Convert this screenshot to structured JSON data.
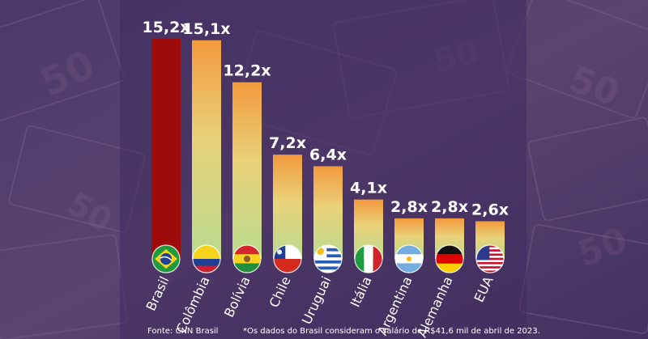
{
  "chart_data": {
    "type": "bar",
    "categories": [
      "Brasil",
      "Colômbia",
      "Bolívia",
      "Chile",
      "Uruguai",
      "Itália",
      "Argentina",
      "Alemanha",
      "EUA"
    ],
    "values": [
      15.2,
      15.1,
      12.2,
      7.2,
      6.4,
      4.1,
      2.8,
      2.8,
      2.6
    ],
    "value_labels": [
      "15,2x",
      "15,1x",
      "12,2x",
      "7,2x",
      "6,4x",
      "4,1x",
      "2,8x",
      "2,8x",
      "2,6x"
    ],
    "ylim": [
      0,
      15.2
    ],
    "grid": false,
    "legend": "none",
    "flags": [
      "brazil-flag",
      "colombia-flag",
      "bolivia-flag",
      "chile-flag",
      "uruguay-flag",
      "italy-flag",
      "argentina-flag",
      "germany-flag",
      "usa-flag"
    ],
    "colors": {
      "highlight_bar": "#9e0b0b",
      "gradient_top": "#f29a3c",
      "gradient_mid": "#e9d27a",
      "gradient_bottom": "#b9db8f",
      "background": "#4a3766"
    }
  },
  "footer": {
    "source": "Fonte: CNN Brasil",
    "note": "*Os dados do Brasil consideram o salário de R$41,6 mil de abril de 2023."
  }
}
